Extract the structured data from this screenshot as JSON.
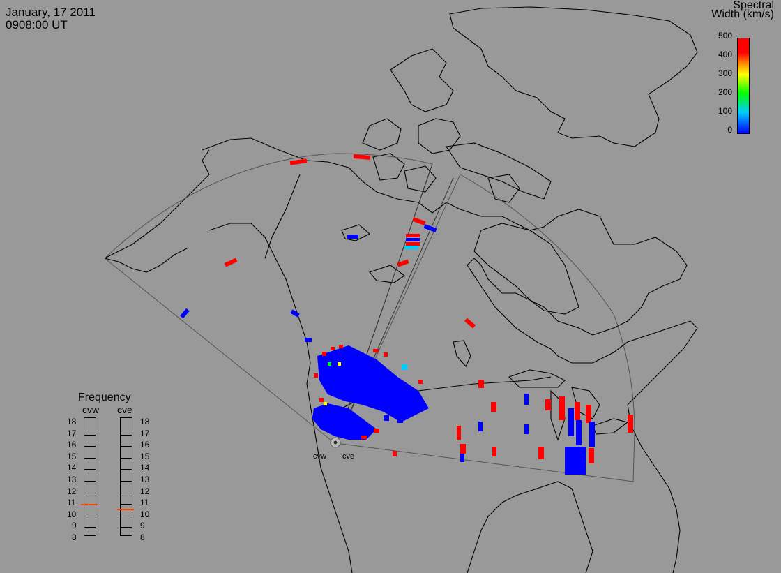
{
  "header": {
    "date": "January, 17 2011",
    "time": "0908:00 UT"
  },
  "colorbar": {
    "title_line1": "Spectral",
    "title_line2": "Width (km/s)",
    "ticks": [
      "500",
      "400",
      "300",
      "200",
      "100",
      "0"
    ],
    "colors": {
      "low": "#0000ff",
      "mid": "#00ff00",
      "high": "#ff0000"
    }
  },
  "frequency_panel": {
    "title": "Frequency",
    "radars": [
      "cvw",
      "cve"
    ],
    "scale": [
      "18",
      "17",
      "16",
      "15",
      "14",
      "13",
      "12",
      "11",
      "10",
      "9",
      "8"
    ],
    "cvw_mhz": 10.9,
    "cve_mhz": 10.5,
    "marker_color": "#ff4500"
  },
  "sites": {
    "west": "cvw",
    "east": "cve"
  },
  "colors": {
    "background": "#999999",
    "coast": "#000000",
    "fov": "#555555"
  }
}
